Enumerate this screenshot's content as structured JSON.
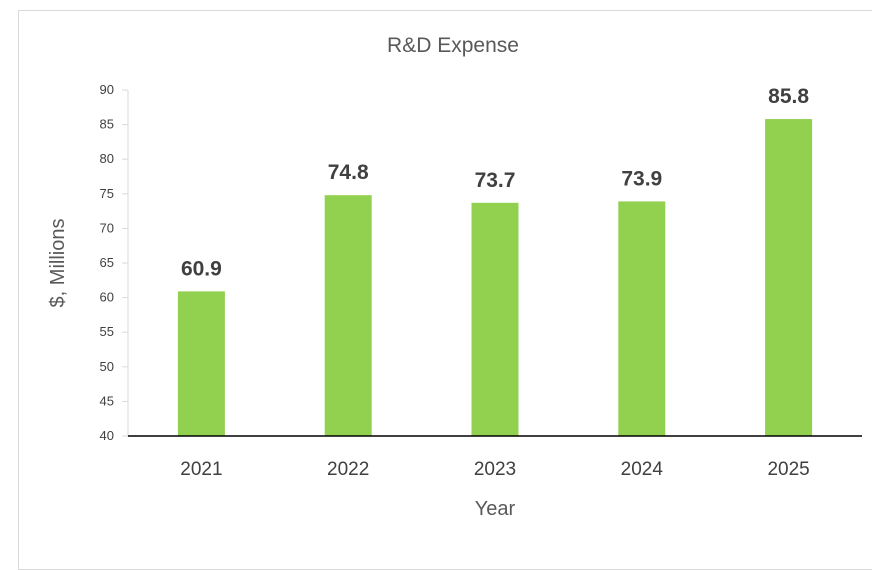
{
  "chart_data": {
    "type": "bar",
    "title": "R&D Expense",
    "xlabel": "Year",
    "ylabel": "$, Millions",
    "categories": [
      "2021",
      "2022",
      "2023",
      "2024",
      "2025"
    ],
    "values": [
      60.9,
      74.8,
      73.7,
      73.9,
      85.8
    ],
    "data_labels": [
      "60.9",
      "74.8",
      "73.7",
      "73.9",
      "85.8"
    ],
    "ylim": [
      40,
      90
    ],
    "yticks": [
      40,
      45,
      50,
      55,
      60,
      65,
      70,
      75,
      80,
      85,
      90
    ],
    "grid": false,
    "legend": "none",
    "bar_color": "#92d050"
  }
}
